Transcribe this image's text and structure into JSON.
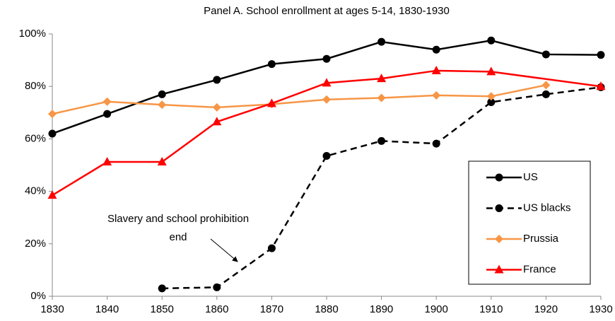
{
  "chart_data": {
    "type": "line",
    "title": "Panel A. School enrollment at ages 5-14, 1830-1930",
    "xlim": [
      1830,
      1930
    ],
    "xticks": [
      1830,
      1840,
      1850,
      1860,
      1870,
      1880,
      1890,
      1900,
      1910,
      1920,
      1930
    ],
    "ylim": [
      0,
      100
    ],
    "yticks": [
      {
        "value": 0,
        "label": "0%"
      },
      {
        "value": 20,
        "label": "20%"
      },
      {
        "value": 40,
        "label": "40%"
      },
      {
        "value": 60,
        "label": "60%"
      },
      {
        "value": 80,
        "label": "80%"
      },
      {
        "value": 100,
        "label": "100%"
      }
    ],
    "series": [
      {
        "name": "US",
        "color": "#000000",
        "marker": "circle",
        "dashed": false,
        "x": [
          1830,
          1840,
          1850,
          1860,
          1870,
          1880,
          1890,
          1900,
          1910,
          1920,
          1930
        ],
        "values": [
          62,
          69.5,
          77,
          82.5,
          88.5,
          90.5,
          97,
          94,
          97.5,
          92.2,
          92
        ]
      },
      {
        "name": "US blacks",
        "color": "#000000",
        "marker": "circle",
        "dashed": true,
        "x": [
          1850,
          1860,
          1870,
          1880,
          1890,
          1900,
          1910,
          1920,
          1930
        ],
        "values": [
          3,
          3.4,
          18.3,
          53.5,
          59.2,
          58.2,
          74,
          77,
          79.7
        ]
      },
      {
        "name": "Prussia",
        "color": "#f79646",
        "marker": "diamond",
        "dashed": false,
        "x": [
          1830,
          1840,
          1850,
          1860,
          1870,
          1880,
          1890,
          1900,
          1910,
          1920
        ],
        "values": [
          69.5,
          74.2,
          73,
          72,
          73.2,
          75,
          75.6,
          76.6,
          76.2,
          80.5
        ]
      },
      {
        "name": "France",
        "color": "#ff0000",
        "marker": "triangle",
        "dashed": false,
        "x": [
          1830,
          1840,
          1850,
          1860,
          1870,
          1880,
          1890,
          1900,
          1910,
          1930
        ],
        "values": [
          38.5,
          51.2,
          51.2,
          66.5,
          73.5,
          81.3,
          83,
          86,
          85.6,
          80
        ]
      }
    ],
    "annotation": [
      "Slavery and school prohibition",
      "end"
    ]
  }
}
